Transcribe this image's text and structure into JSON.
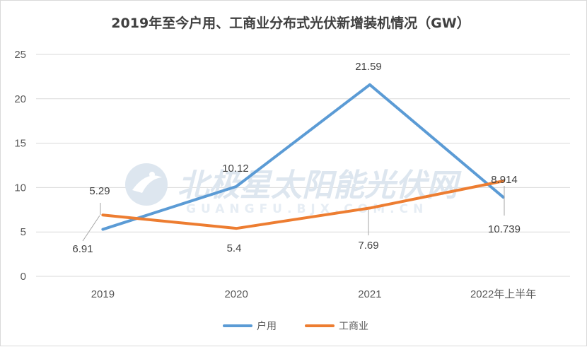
{
  "chart_data": {
    "type": "line",
    "title": "2019年至今户用、工商业分布式光伏新增装机情况（GW）",
    "categories": [
      "2019",
      "2020",
      "2021",
      "2022年上半年"
    ],
    "series": [
      {
        "name": "户用",
        "values": [
          5.29,
          10.12,
          21.59,
          8.914
        ],
        "labels": [
          "5.29",
          "10.12",
          "21.59",
          "8.914"
        ],
        "color": "#5b9bd5"
      },
      {
        "name": "工商业",
        "values": [
          6.91,
          5.4,
          7.69,
          10.739
        ],
        "labels": [
          "6.91",
          "5.4",
          "7.69",
          "10.739"
        ],
        "color": "#ed7d31"
      }
    ],
    "ylim": [
      0,
      25
    ],
    "yticks": [
      "0",
      "5",
      "10",
      "15",
      "20",
      "25"
    ],
    "grid": true,
    "legend": "bottom"
  },
  "watermark": {
    "text": "北极星太阳能光伏网",
    "subtext": "GUANGFU.BJX.COM.CN"
  }
}
